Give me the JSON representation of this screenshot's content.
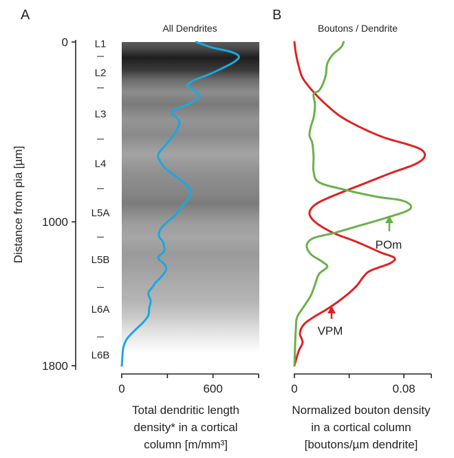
{
  "panel_a": {
    "letter": "A",
    "title": "All Dendrites",
    "y_axis_label": "Distance from pia [µm]",
    "x_axis_label_lines": [
      "Total dendritic length",
      "density* in a cortical",
      "column [m/mm³]"
    ]
  },
  "panel_b": {
    "letter": "B",
    "title": "Boutons / Dendrite",
    "x_axis_label_lines": [
      "Normalized bouton density",
      "in a cortical column",
      "[boutons/µm dendrite]"
    ],
    "annotations": [
      {
        "text": "POm",
        "color": "#6ab04c"
      },
      {
        "text": "VPM",
        "color": "#e02020"
      }
    ]
  },
  "colors": {
    "dendrite_line": "#1ba8e0",
    "vpm_line": "#e02020",
    "pom_line": "#6ab04c",
    "axis": "#222222"
  },
  "chart_data": [
    {
      "type": "line",
      "title": "All Dendrites",
      "xlabel": "Total dendritic length density* in a cortical column [m/mm³]",
      "ylabel": "Distance from pia [µm]",
      "x_ticks": [
        0,
        600
      ],
      "y_ticks": [
        0,
        1000,
        1800
      ],
      "xlim": [
        0,
        900
      ],
      "ylim": [
        0,
        1800
      ],
      "y_inverted": true,
      "background": "grayscale density band, dark at top fading to white near 1680 µm",
      "layers": [
        {
          "name": "L1",
          "center": 10
        },
        {
          "name": "L2",
          "center": 170
        },
        {
          "name": "L3",
          "center": 400
        },
        {
          "name": "L4",
          "center": 675
        },
        {
          "name": "L5A",
          "center": 950
        },
        {
          "name": "L5B",
          "center": 1210
        },
        {
          "name": "L6A",
          "center": 1485
        },
        {
          "name": "L6B",
          "center": 1740
        }
      ],
      "layer_boundaries": [
        80,
        255,
        540,
        815,
        1085,
        1365,
        1640
      ],
      "series": [
        {
          "color": "#1ba8e0",
          "points": [
            [
              490,
              0
            ],
            [
              590,
              30
            ],
            [
              720,
              55
            ],
            [
              770,
              80
            ],
            [
              740,
              110
            ],
            [
              650,
              150
            ],
            [
              560,
              185
            ],
            [
              470,
              215
            ],
            [
              430,
              245
            ],
            [
              470,
              265
            ],
            [
              510,
              300
            ],
            [
              440,
              345
            ],
            [
              350,
              375
            ],
            [
              330,
              400
            ],
            [
              360,
              420
            ],
            [
              380,
              450
            ],
            [
              355,
              500
            ],
            [
              320,
              540
            ],
            [
              280,
              580
            ],
            [
              240,
              625
            ],
            [
              250,
              660
            ],
            [
              290,
              705
            ],
            [
              360,
              750
            ],
            [
              420,
              790
            ],
            [
              455,
              830
            ],
            [
              440,
              870
            ],
            [
              390,
              920
            ],
            [
              350,
              965
            ],
            [
              300,
              1000
            ],
            [
              255,
              1040
            ],
            [
              245,
              1080
            ],
            [
              270,
              1110
            ],
            [
              280,
              1160
            ],
            [
              240,
              1200
            ],
            [
              285,
              1240
            ],
            [
              290,
              1270
            ],
            [
              255,
              1310
            ],
            [
              220,
              1340
            ],
            [
              205,
              1360
            ],
            [
              175,
              1395
            ],
            [
              190,
              1440
            ],
            [
              180,
              1480
            ],
            [
              175,
              1520
            ],
            [
              140,
              1560
            ],
            [
              90,
              1600
            ],
            [
              35,
              1650
            ],
            [
              10,
              1700
            ],
            [
              2,
              1780
            ],
            [
              0,
              1800
            ]
          ]
        }
      ]
    },
    {
      "type": "line",
      "title": "Boutons / Dendrite",
      "xlabel": "Normalized bouton density in a cortical column [boutons/µm dendrite]",
      "x_ticks": [
        0,
        0.08
      ],
      "xlim": [
        0,
        0.1
      ],
      "ylim": [
        0,
        1800
      ],
      "y_inverted": true,
      "series": [
        {
          "name": "VPM",
          "color": "#e02020",
          "points": [
            [
              0.0,
              0
            ],
            [
              0.001,
              60
            ],
            [
              0.003,
              130
            ],
            [
              0.006,
              200
            ],
            [
              0.013,
              270
            ],
            [
              0.022,
              340
            ],
            [
              0.033,
              410
            ],
            [
              0.047,
              470
            ],
            [
              0.065,
              530
            ],
            [
              0.083,
              570
            ],
            [
              0.093,
              600
            ],
            [
              0.095,
              640
            ],
            [
              0.088,
              680
            ],
            [
              0.07,
              730
            ],
            [
              0.05,
              790
            ],
            [
              0.03,
              850
            ],
            [
              0.016,
              900
            ],
            [
              0.011,
              950
            ],
            [
              0.015,
              1000
            ],
            [
              0.028,
              1060
            ],
            [
              0.045,
              1110
            ],
            [
              0.063,
              1170
            ],
            [
              0.073,
              1200
            ],
            [
              0.07,
              1230
            ],
            [
              0.056,
              1270
            ],
            [
              0.051,
              1300
            ],
            [
              0.045,
              1360
            ],
            [
              0.036,
              1420
            ],
            [
              0.025,
              1480
            ],
            [
              0.014,
              1530
            ],
            [
              0.007,
              1570
            ],
            [
              0.004,
              1620
            ],
            [
              0.006,
              1670
            ],
            [
              0.003,
              1720
            ],
            [
              0.0,
              1800
            ]
          ]
        },
        {
          "name": "POm",
          "color": "#6ab04c",
          "points": [
            [
              0.036,
              0
            ],
            [
              0.034,
              30
            ],
            [
              0.028,
              70
            ],
            [
              0.024,
              120
            ],
            [
              0.023,
              180
            ],
            [
              0.021,
              230
            ],
            [
              0.018,
              270
            ],
            [
              0.014,
              290
            ],
            [
              0.015,
              350
            ],
            [
              0.014,
              420
            ],
            [
              0.012,
              470
            ],
            [
              0.011,
              520
            ],
            [
              0.013,
              560
            ],
            [
              0.014,
              640
            ],
            [
              0.014,
              720
            ],
            [
              0.018,
              780
            ],
            [
              0.036,
              820
            ],
            [
              0.06,
              860
            ],
            [
              0.078,
              880
            ],
            [
              0.085,
              910
            ],
            [
              0.082,
              940
            ],
            [
              0.066,
              980
            ],
            [
              0.048,
              1020
            ],
            [
              0.03,
              1060
            ],
            [
              0.014,
              1090
            ],
            [
              0.009,
              1130
            ],
            [
              0.012,
              1180
            ],
            [
              0.02,
              1220
            ],
            [
              0.024,
              1250
            ],
            [
              0.018,
              1290
            ],
            [
              0.015,
              1350
            ],
            [
              0.012,
              1410
            ],
            [
              0.007,
              1470
            ],
            [
              0.002,
              1530
            ],
            [
              0.001,
              1600
            ],
            [
              0.0,
              1800
            ]
          ]
        }
      ]
    }
  ]
}
